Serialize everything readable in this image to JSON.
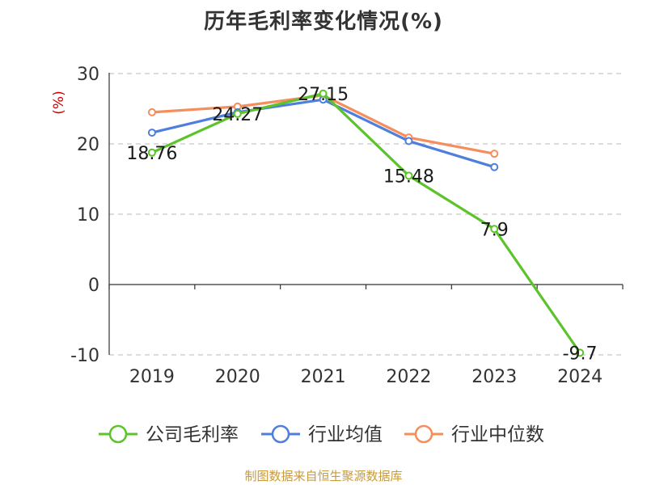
{
  "chart_data": {
    "type": "line",
    "title": "历年毛利率变化情况(%)",
    "ylabel": "(%)",
    "xlabel": "",
    "categories": [
      "2019",
      "2020",
      "2021",
      "2022",
      "2023",
      "2024"
    ],
    "ylim": [
      -10,
      30
    ],
    "yticks": [
      -10,
      0,
      10,
      20,
      30
    ],
    "grid": true,
    "legend_position": "bottom",
    "series": [
      {
        "name": "公司毛利率",
        "color": "#5cc42a",
        "values": [
          18.76,
          24.27,
          27.15,
          15.48,
          7.9,
          -9.7
        ],
        "labels": [
          "18.76",
          "24.27",
          "27.15",
          "15.48",
          "7.9",
          "-9.7"
        ]
      },
      {
        "name": "行业均值",
        "color": "#4e7fdc",
        "values": [
          21.6,
          24.5,
          26.3,
          20.4,
          16.7,
          null
        ]
      },
      {
        "name": "行业中位数",
        "color": "#f58d5c",
        "values": [
          24.5,
          25.3,
          26.9,
          20.9,
          18.6,
          null
        ]
      }
    ]
  },
  "source": "制图数据来自恒生聚源数据库"
}
